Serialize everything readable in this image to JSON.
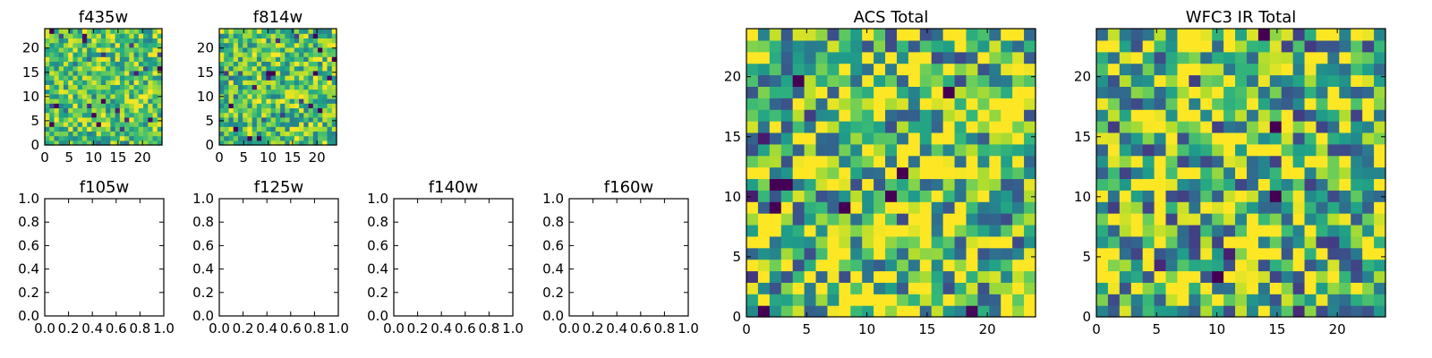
{
  "chart_data": [
    {
      "type": "heatmap",
      "title": "f435w",
      "grid": 25,
      "xlim": [
        0,
        24
      ],
      "ylim": [
        0,
        24
      ],
      "xticks": [
        0,
        5,
        10,
        15,
        20
      ],
      "yticks": [
        0,
        5,
        10,
        15,
        20
      ],
      "palette": "viridis",
      "seed": 11,
      "contrast": 0.28
    },
    {
      "type": "heatmap",
      "title": "f814w",
      "grid": 25,
      "xlim": [
        0,
        24
      ],
      "ylim": [
        0,
        24
      ],
      "xticks": [
        0,
        5,
        10,
        15,
        20
      ],
      "yticks": [
        0,
        5,
        10,
        15,
        20
      ],
      "palette": "viridis",
      "seed": 23,
      "contrast": 0.3
    },
    {
      "type": "empty",
      "title": "f105w",
      "xlim": [
        0,
        1
      ],
      "ylim": [
        0,
        1
      ],
      "xticks": [
        0.0,
        0.2,
        0.4,
        0.6,
        0.8,
        1.0
      ],
      "yticks": [
        0.0,
        0.2,
        0.4,
        0.6,
        0.8,
        1.0
      ]
    },
    {
      "type": "empty",
      "title": "f125w",
      "xlim": [
        0,
        1
      ],
      "ylim": [
        0,
        1
      ],
      "xticks": [
        0.0,
        0.2,
        0.4,
        0.6,
        0.8,
        1.0
      ],
      "yticks": [
        0.0,
        0.2,
        0.4,
        0.6,
        0.8,
        1.0
      ]
    },
    {
      "type": "empty",
      "title": "f140w",
      "xlim": [
        0,
        1
      ],
      "ylim": [
        0,
        1
      ],
      "xticks": [
        0.0,
        0.2,
        0.4,
        0.6,
        0.8,
        1.0
      ],
      "yticks": [
        0.0,
        0.2,
        0.4,
        0.6,
        0.8,
        1.0
      ]
    },
    {
      "type": "empty",
      "title": "f160w",
      "xlim": [
        0,
        1
      ],
      "ylim": [
        0,
        1
      ],
      "xticks": [
        0.0,
        0.2,
        0.4,
        0.6,
        0.8,
        1.0
      ],
      "yticks": [
        0.0,
        0.2,
        0.4,
        0.6,
        0.8,
        1.0
      ]
    },
    {
      "type": "heatmap",
      "title": "ACS Total",
      "grid": 25,
      "xlim": [
        0,
        24
      ],
      "ylim": [
        0,
        24
      ],
      "xticks": [
        0,
        5,
        10,
        15,
        20
      ],
      "yticks": [
        0,
        5,
        10,
        15,
        20
      ],
      "palette": "viridis",
      "seed": 37,
      "contrast": 0.5
    },
    {
      "type": "heatmap",
      "title": "WFC3 IR Total",
      "grid": 25,
      "xlim": [
        0,
        24
      ],
      "ylim": [
        0,
        24
      ],
      "xticks": [
        0,
        5,
        10,
        15,
        20
      ],
      "yticks": [
        0,
        5,
        10,
        15,
        20
      ],
      "palette": "viridis",
      "seed": 53,
      "contrast": 0.55
    }
  ]
}
